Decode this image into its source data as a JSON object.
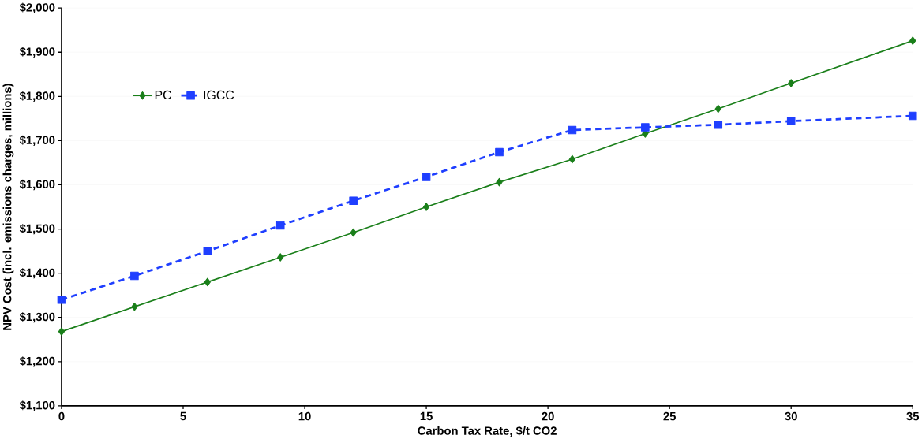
{
  "chart_data": {
    "type": "line",
    "xlabel": "Carbon Tax Rate, $/t CO2",
    "ylabel": "NPV Cost (incl. emissions charges, millions)",
    "x": [
      0,
      3,
      6,
      9,
      12,
      15,
      18,
      21,
      24,
      27,
      30,
      35
    ],
    "series": [
      {
        "name": "PC",
        "color": "#1a7f1a",
        "marker": "diamond",
        "line_style": "solid",
        "values": [
          1268,
          1324,
          1380,
          1436,
          1492,
          1550,
          1606,
          1658,
          1716,
          1772,
          1830,
          1926
        ]
      },
      {
        "name": "IGCC",
        "color": "#1f3fff",
        "marker": "square",
        "line_style": "dashed",
        "values": [
          1340,
          1394,
          1450,
          1508,
          1564,
          1618,
          1674,
          1724,
          1730,
          1736,
          1744,
          1756
        ]
      }
    ],
    "xlim": [
      0,
      35
    ],
    "xticks": [
      0,
      5,
      10,
      15,
      20,
      25,
      30,
      35
    ],
    "ylim": [
      1100,
      2000
    ],
    "yticks": [
      {
        "value": 1100,
        "label": "$1,100"
      },
      {
        "value": 1200,
        "label": "$1,200"
      },
      {
        "value": 1300,
        "label": "$1,300"
      },
      {
        "value": 1400,
        "label": "$1,400"
      },
      {
        "value": 1500,
        "label": "$1,500"
      },
      {
        "value": 1600,
        "label": "$1,600"
      },
      {
        "value": 1700,
        "label": "$1,700"
      },
      {
        "value": 1800,
        "label": "$1,800"
      },
      {
        "value": 1900,
        "label": "$1,900"
      },
      {
        "value": 2000,
        "label": "$2,000"
      }
    ],
    "grid": "y",
    "legend": "top left"
  }
}
